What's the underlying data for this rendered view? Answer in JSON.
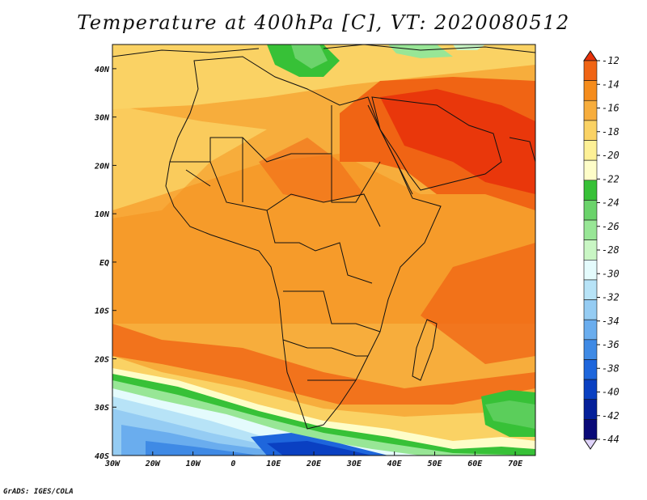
{
  "title": "Temperature at 400hPa [C], VT: 2020080512",
  "credit": "GrADS: IGES/COLA",
  "map": {
    "variable": "Temperature",
    "level": "400hPa",
    "units": "C",
    "valid_time": "2020080512",
    "lon_range": [
      -30,
      75
    ],
    "lat_range": [
      -40,
      45
    ],
    "lon_ticks": [
      "30W",
      "20W",
      "10W",
      "0",
      "10E",
      "20E",
      "30E",
      "40E",
      "50E",
      "60E",
      "70E"
    ],
    "lat_ticks": [
      "40N",
      "30N",
      "20N",
      "10N",
      "EQ",
      "10S",
      "20S",
      "30S",
      "40S"
    ]
  },
  "colorbar": {
    "labels": [
      "-12",
      "-14",
      "-16",
      "-18",
      "-20",
      "-22",
      "-24",
      "-26",
      "-28",
      "-30",
      "-32",
      "-34",
      "-36",
      "-38",
      "-40",
      "-42",
      "-44"
    ],
    "colors": [
      "#e8320a",
      "#f06414",
      "#f58c1c",
      "#f7ad3c",
      "#fad264",
      "#fdf096",
      "#fefdc8",
      "#37c137",
      "#6bd36b",
      "#98e696",
      "#c9f6c4",
      "#e4fbfc",
      "#b7e3f7",
      "#95ccf3",
      "#6aadee",
      "#3f8ae5",
      "#1e66dc",
      "#0a40c2",
      "#05209a",
      "#0a0a78",
      "#e0d4fb"
    ]
  }
}
